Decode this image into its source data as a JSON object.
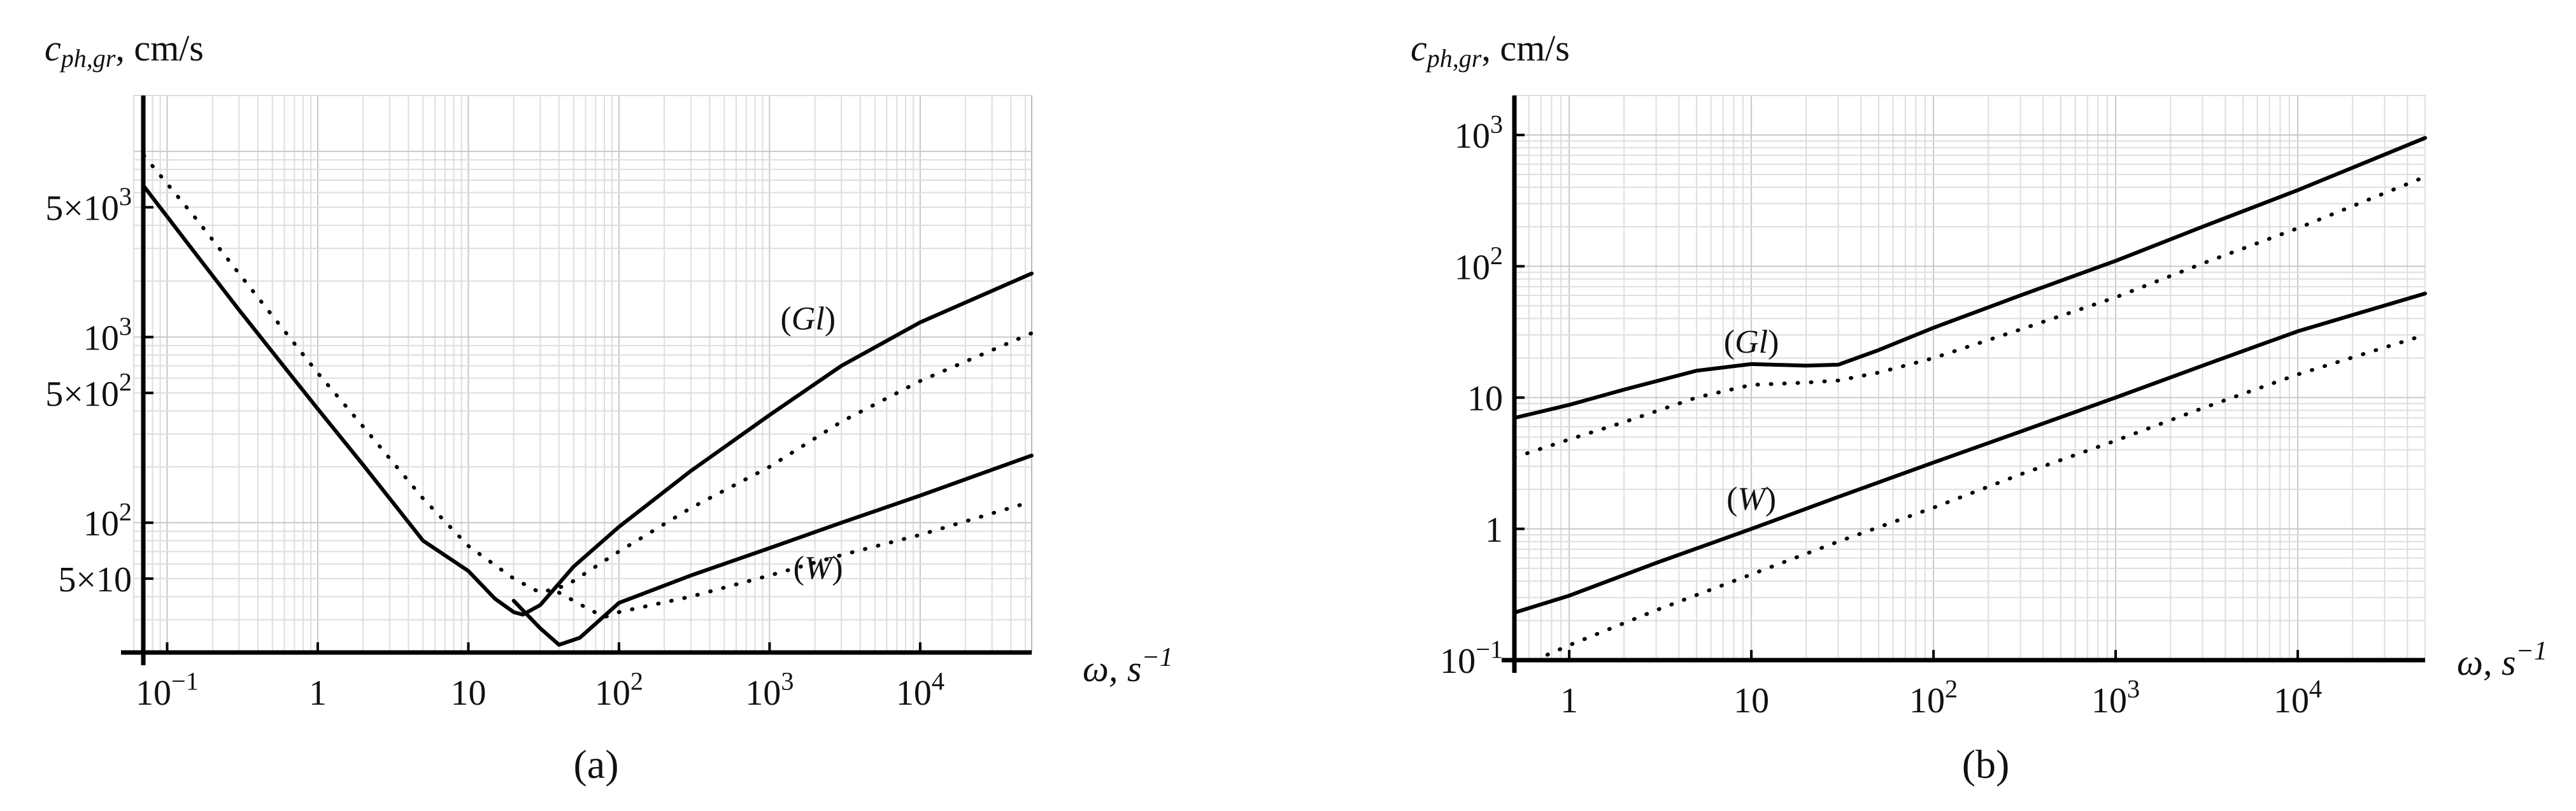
{
  "figure": {
    "panel_labels": [
      "(a)",
      "(b)"
    ]
  },
  "chart_data": [
    {
      "type": "line",
      "panel": "(a)",
      "scale": {
        "x": "log",
        "y": "log"
      },
      "xlabel": "ω, s⁻¹",
      "ylabel": "c_{ph,gr}, cm/s",
      "xlim": [
        0.06,
        55000
      ],
      "ylim": [
        20,
        20000
      ],
      "grid": true,
      "xticks": [
        {
          "value": 0.1,
          "label": "10⁻¹"
        },
        {
          "value": 1,
          "label": "1"
        },
        {
          "value": 10,
          "label": "10"
        },
        {
          "value": 100,
          "label": "10²"
        },
        {
          "value": 1000,
          "label": "10³"
        },
        {
          "value": 10000,
          "label": "10⁴"
        }
      ],
      "yticks": [
        {
          "value": 50,
          "label": "5×10"
        },
        {
          "value": 100,
          "label": "10²"
        },
        {
          "value": 500,
          "label": "5×10²"
        },
        {
          "value": 1000,
          "label": "10³"
        },
        {
          "value": 5000,
          "label": "5×10³"
        }
      ],
      "annotations": [
        {
          "text": "(Gl)",
          "x": 1800,
          "y": 1100
        },
        {
          "text": "(W)",
          "x": 2100,
          "y": 50
        }
      ],
      "series": [
        {
          "style": "solid",
          "group": "Gl",
          "points": [
            [
              0.07,
              6500
            ],
            [
              0.15,
              2900
            ],
            [
              0.3,
              1400
            ],
            [
              0.6,
              690
            ],
            [
              1,
              410
            ],
            [
              2,
              205
            ],
            [
              5,
              80
            ],
            [
              10,
              55
            ],
            [
              15,
              39
            ],
            [
              20,
              33
            ],
            [
              23,
              32
            ],
            [
              30,
              36
            ],
            [
              50,
              58
            ],
            [
              100,
              95
            ],
            [
              300,
              190
            ],
            [
              1000,
              380
            ],
            [
              3000,
              700
            ],
            [
              10000,
              1200
            ],
            [
              55000,
              2200
            ]
          ]
        },
        {
          "style": "dotted",
          "group": "Gl",
          "points": [
            [
              0.07,
              9500
            ],
            [
              0.15,
              4500
            ],
            [
              0.3,
              2200
            ],
            [
              0.6,
              1080
            ],
            [
              1,
              640
            ],
            [
              2,
              330
            ],
            [
              5,
              135
            ],
            [
              10,
              75
            ],
            [
              20,
              50
            ],
            [
              30,
              42
            ],
            [
              45,
              46
            ],
            [
              100,
              70
            ],
            [
              300,
              120
            ],
            [
              1000,
              200
            ],
            [
              3000,
              350
            ],
            [
              10000,
              580
            ],
            [
              55000,
              1050
            ]
          ]
        },
        {
          "style": "solid",
          "group": "W",
          "points": [
            [
              20,
              38
            ],
            [
              30,
              27
            ],
            [
              40,
              22
            ],
            [
              55,
              24
            ],
            [
              100,
              37
            ],
            [
              300,
              52
            ],
            [
              1000,
              73
            ],
            [
              3000,
              100
            ],
            [
              10000,
              140
            ],
            [
              55000,
              230
            ]
          ]
        },
        {
          "style": "dotted",
          "group": "W",
          "points": [
            [
              40,
              42
            ],
            [
              60,
              35
            ],
            [
              80,
              31
            ],
            [
              100,
              33
            ],
            [
              300,
              40
            ],
            [
              1000,
              52
            ],
            [
              3000,
              67
            ],
            [
              10000,
              86
            ],
            [
              55000,
              130
            ]
          ]
        }
      ]
    },
    {
      "type": "line",
      "panel": "(b)",
      "scale": {
        "x": "log",
        "y": "log"
      },
      "xlabel": "ω, s⁻¹",
      "ylabel": "c_{ph,gr}, cm/s",
      "xlim": [
        0.5,
        50000
      ],
      "ylim": [
        0.1,
        2000
      ],
      "grid": true,
      "xticks": [
        {
          "value": 1,
          "label": "1"
        },
        {
          "value": 10,
          "label": "10"
        },
        {
          "value": 100,
          "label": "10²"
        },
        {
          "value": 1000,
          "label": "10³"
        },
        {
          "value": 10000,
          "label": "10⁴"
        }
      ],
      "yticks": [
        {
          "value": 0.1,
          "label": "10⁻¹"
        },
        {
          "value": 1,
          "label": "1"
        },
        {
          "value": 10,
          "label": "10"
        },
        {
          "value": 100,
          "label": "10²"
        },
        {
          "value": 1000,
          "label": "10³"
        }
      ],
      "annotations": [
        {
          "text": "(Gl)",
          "x": 10,
          "y": 22
        },
        {
          "text": "(W)",
          "x": 10,
          "y": 1.4
        }
      ],
      "series": [
        {
          "style": "solid",
          "group": "Gl",
          "points": [
            [
              0.5,
              7
            ],
            [
              1,
              8.8
            ],
            [
              2,
              11.5
            ],
            [
              5,
              16
            ],
            [
              10,
              18
            ],
            [
              20,
              17.5
            ],
            [
              30,
              17.8
            ],
            [
              50,
              23
            ],
            [
              100,
              34
            ],
            [
              300,
              60
            ],
            [
              1000,
              110
            ],
            [
              3000,
              200
            ],
            [
              10000,
              380
            ],
            [
              50000,
              950
            ]
          ]
        },
        {
          "style": "dotted",
          "group": "Gl",
          "points": [
            [
              0.5,
              3.5
            ],
            [
              1,
              4.8
            ],
            [
              2,
              6.5
            ],
            [
              5,
              10
            ],
            [
              10,
              12.5
            ],
            [
              20,
              13
            ],
            [
              30,
              13.5
            ],
            [
              50,
              15.5
            ],
            [
              100,
              20
            ],
            [
              300,
              33
            ],
            [
              1000,
              58
            ],
            [
              3000,
              105
            ],
            [
              10000,
              195
            ],
            [
              50000,
              480
            ]
          ]
        },
        {
          "style": "solid",
          "group": "W",
          "points": [
            [
              0.5,
              0.23
            ],
            [
              1,
              0.31
            ],
            [
              3,
              0.55
            ],
            [
              10,
              1
            ],
            [
              30,
              1.75
            ],
            [
              100,
              3.2
            ],
            [
              300,
              5.5
            ],
            [
              1000,
              10
            ],
            [
              3000,
              17.5
            ],
            [
              10000,
              32
            ],
            [
              50000,
              62
            ]
          ]
        },
        {
          "style": "dotted",
          "group": "W",
          "points": [
            [
              0.65,
              0.1
            ],
            [
              1,
              0.13
            ],
            [
              3,
              0.24
            ],
            [
              10,
              0.45
            ],
            [
              30,
              0.8
            ],
            [
              100,
              1.45
            ],
            [
              300,
              2.6
            ],
            [
              1000,
              4.7
            ],
            [
              3000,
              8.3
            ],
            [
              10000,
              15
            ],
            [
              50000,
              30
            ]
          ]
        }
      ]
    }
  ]
}
